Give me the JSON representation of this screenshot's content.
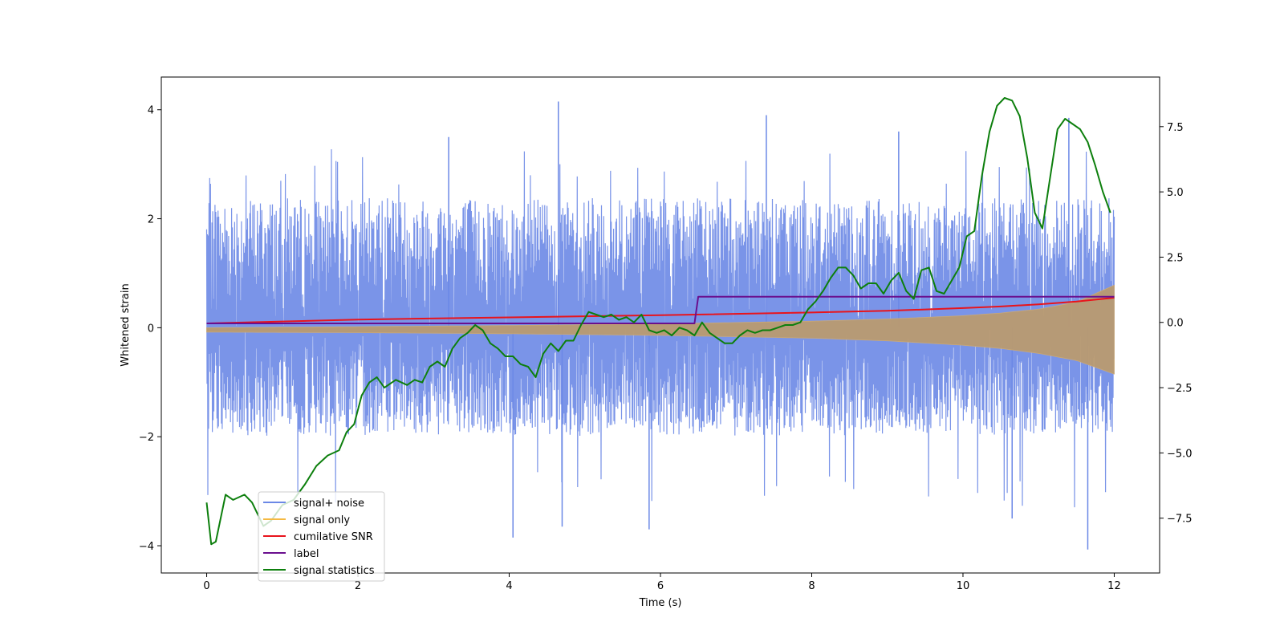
{
  "chart_data": {
    "type": "line",
    "title": "",
    "xlabel": "Time (s)",
    "ylabel": "Whitened strain",
    "xlim": [
      -0.6,
      12.6
    ],
    "ylim": [
      -4.5,
      4.6
    ],
    "ylim_right": [
      -9.6,
      9.4
    ],
    "xticks": [
      0,
      2,
      4,
      6,
      8,
      10,
      12
    ],
    "yticks": [
      -4,
      -2,
      0,
      2,
      4
    ],
    "yticks_right": [
      -7.5,
      -5.0,
      -2.5,
      0.0,
      2.5,
      5.0,
      7.5
    ],
    "xtick_labels": [
      "0",
      "2",
      "4",
      "6",
      "8",
      "10",
      "12"
    ],
    "ytick_labels": [
      "−4",
      "−2",
      "0",
      "2",
      "4"
    ],
    "ytick_right_labels": [
      "−7.5",
      "−5.0",
      "−2.5",
      "0.0",
      "2.5",
      "5.0",
      "7.5"
    ],
    "grid": false,
    "legend_position": "lower-left",
    "series": [
      {
        "name": "signal+ noise",
        "axis": "left",
        "style": "noise-band",
        "color": "#6b88e6",
        "x_range": [
          0,
          12
        ],
        "typical_upper": [
          0,
          2.4
        ],
        "typical_lower": [
          -2.0,
          0
        ],
        "peaks": [
          [
            4.65,
            4.15
          ],
          [
            3.2,
            3.5
          ],
          [
            7.4,
            3.9
          ],
          [
            9.15,
            3.6
          ],
          [
            11.4,
            3.85
          ],
          [
            11.65,
            -4.07
          ],
          [
            4.7,
            -3.65
          ],
          [
            5.85,
            -3.7
          ],
          [
            4.05,
            -3.85
          ],
          [
            10.65,
            -3.5
          ]
        ]
      },
      {
        "name": "signal only",
        "axis": "left",
        "style": "envelope",
        "color": "#f5b942",
        "x": [
          0,
          2,
          4,
          6,
          8,
          9,
          10,
          10.5,
          11,
          11.5,
          12
        ],
        "upper": [
          0.0,
          0.02,
          0.04,
          0.07,
          0.12,
          0.16,
          0.22,
          0.27,
          0.34,
          0.47,
          0.78
        ],
        "lower": [
          -0.08,
          -0.09,
          -0.11,
          -0.14,
          -0.19,
          -0.24,
          -0.32,
          -0.38,
          -0.47,
          -0.6,
          -0.85
        ]
      },
      {
        "name": "cumilative SNR",
        "axis": "left",
        "style": "line",
        "color": "#e8141c",
        "x": [
          0,
          2,
          4,
          6,
          8,
          9,
          10,
          10.5,
          11,
          11.5,
          12
        ],
        "y": [
          0.08,
          0.15,
          0.19,
          0.23,
          0.28,
          0.31,
          0.36,
          0.39,
          0.43,
          0.48,
          0.55
        ]
      },
      {
        "name": "label",
        "axis": "left",
        "style": "step",
        "color": "#6a0f8e",
        "x": [
          0,
          6.45,
          6.5,
          12
        ],
        "y": [
          0.08,
          0.08,
          0.57,
          0.57
        ]
      },
      {
        "name": "signal statistics",
        "axis": "right",
        "style": "line",
        "color": "#0d7f0d",
        "x": [
          0,
          0.06,
          0.12,
          0.25,
          0.35,
          0.5,
          0.6,
          0.75,
          0.85,
          1.0,
          1.15,
          1.3,
          1.45,
          1.6,
          1.75,
          1.85,
          1.95,
          2.05,
          2.15,
          2.25,
          2.35,
          2.5,
          2.65,
          2.75,
          2.85,
          2.95,
          3.05,
          3.15,
          3.25,
          3.35,
          3.45,
          3.55,
          3.65,
          3.75,
          3.85,
          3.95,
          4.05,
          4.15,
          4.25,
          4.35,
          4.45,
          4.55,
          4.65,
          4.75,
          4.85,
          4.95,
          5.05,
          5.15,
          5.25,
          5.35,
          5.45,
          5.55,
          5.65,
          5.75,
          5.85,
          5.95,
          6.05,
          6.15,
          6.25,
          6.35,
          6.45,
          6.55,
          6.65,
          6.75,
          6.85,
          6.95,
          7.05,
          7.15,
          7.25,
          7.35,
          7.45,
          7.55,
          7.65,
          7.75,
          7.85,
          7.95,
          8.05,
          8.15,
          8.25,
          8.35,
          8.45,
          8.55,
          8.65,
          8.75,
          8.85,
          8.95,
          9.05,
          9.15,
          9.25,
          9.35,
          9.45,
          9.55,
          9.65,
          9.75,
          9.85,
          9.95,
          10.05,
          10.15,
          10.25,
          10.35,
          10.45,
          10.55,
          10.65,
          10.75,
          10.85,
          10.95,
          11.05,
          11.15,
          11.25,
          11.35,
          11.45,
          11.55,
          11.65,
          11.75,
          11.85,
          11.95
        ],
        "y": [
          -6.9,
          -8.5,
          -8.4,
          -6.6,
          -6.8,
          -6.6,
          -6.9,
          -7.8,
          -7.6,
          -7.0,
          -6.8,
          -6.2,
          -5.5,
          -5.1,
          -4.9,
          -4.2,
          -3.9,
          -2.8,
          -2.3,
          -2.1,
          -2.5,
          -2.2,
          -2.4,
          -2.2,
          -2.3,
          -1.7,
          -1.5,
          -1.7,
          -1.0,
          -0.6,
          -0.4,
          -0.1,
          -0.3,
          -0.8,
          -1.0,
          -1.3,
          -1.3,
          -1.6,
          -1.7,
          -2.1,
          -1.2,
          -0.8,
          -1.1,
          -0.7,
          -0.7,
          -0.1,
          0.4,
          0.3,
          0.2,
          0.3,
          0.1,
          0.2,
          0.0,
          0.3,
          -0.3,
          -0.4,
          -0.3,
          -0.5,
          -0.2,
          -0.3,
          -0.5,
          0.0,
          -0.4,
          -0.6,
          -0.8,
          -0.8,
          -0.5,
          -0.3,
          -0.4,
          -0.3,
          -0.3,
          -0.2,
          -0.1,
          -0.1,
          0.0,
          0.5,
          0.8,
          1.2,
          1.7,
          2.1,
          2.1,
          1.8,
          1.3,
          1.5,
          1.5,
          1.1,
          1.6,
          1.9,
          1.2,
          0.9,
          2.0,
          2.1,
          1.2,
          1.1,
          1.6,
          2.1,
          3.3,
          3.5,
          5.6,
          7.3,
          8.3,
          8.6,
          8.5,
          7.9,
          6.3,
          4.2,
          3.6,
          5.5,
          7.4,
          7.8,
          7.6,
          7.4,
          6.9,
          6.0,
          5.0,
          4.2
        ]
      }
    ]
  }
}
